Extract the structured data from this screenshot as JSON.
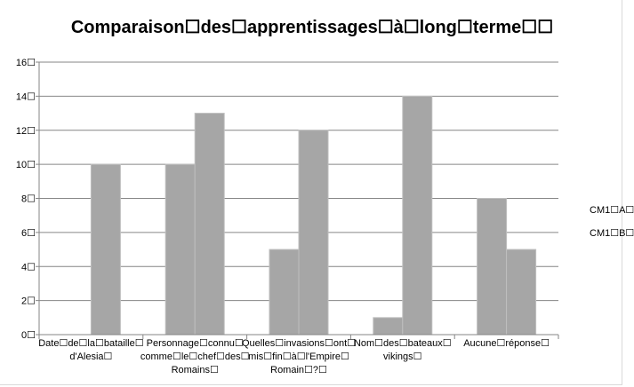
{
  "chart_data": {
    "type": "bar",
    "title": "Comparaison☐des☐apprentissages☐à☐long☐terme☐☐",
    "categories": [
      [
        "Date☐de☐la☐bataille☐",
        "d'Alesia☐"
      ],
      [
        "Personnage☐connu☐",
        "comme☐le☐chef☐des☐",
        "Romains☐"
      ],
      [
        "Quelles☐invasions☐ont☐",
        "mis☐fin☐à☐l'Empire☐",
        "Romain☐?☐"
      ],
      [
        "Nom☐des☐bateaux☐",
        "vikings☐"
      ],
      [
        "Aucune☐réponse☐"
      ]
    ],
    "series": [
      {
        "name": "CM1☐A☐",
        "values": [
          0,
          10,
          5,
          1,
          8
        ]
      },
      {
        "name": "CM1☐B☐",
        "values": [
          10,
          13,
          12,
          14,
          5
        ]
      }
    ],
    "yticks": [
      "0☐",
      "2☐",
      "4☐",
      "6☐",
      "8☐",
      "10☐",
      "12☐",
      "14☐",
      "16☐"
    ],
    "ylim": [
      0,
      16
    ],
    "grid": true,
    "legend_position": "right",
    "colors": {
      "bar": "#a6a6a6",
      "bar_edge": "#bfbfbf",
      "grid": "#868686"
    }
  }
}
